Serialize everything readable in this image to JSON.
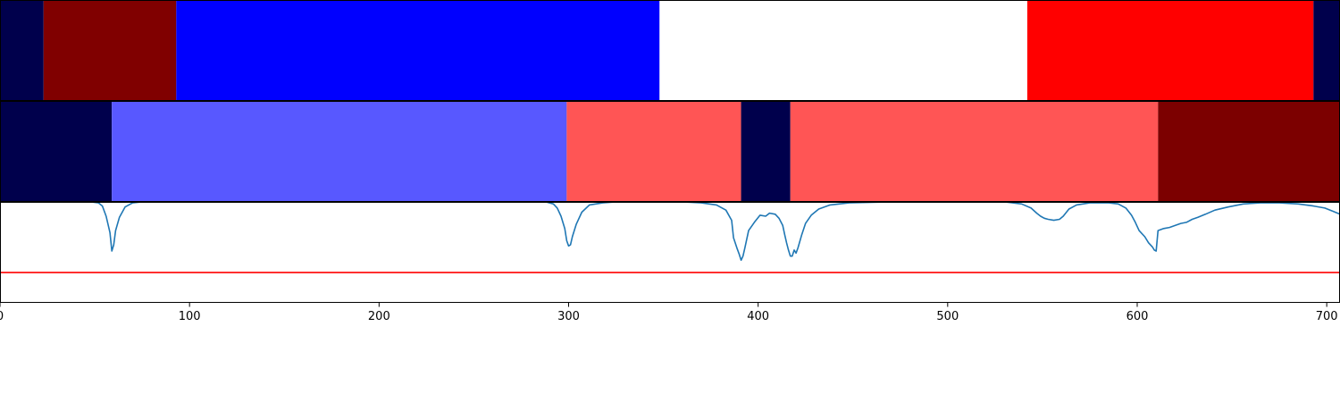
{
  "chart_data": [
    {
      "type": "heatmap",
      "xlim": [
        0,
        707
      ],
      "segments": [
        {
          "start": 0,
          "end": 23,
          "color": "#00004c"
        },
        {
          "start": 23,
          "end": 93,
          "color": "#800000"
        },
        {
          "start": 93,
          "end": 348,
          "color": "#0000ff"
        },
        {
          "start": 348,
          "end": 542,
          "color": "#ffffff"
        },
        {
          "start": 542,
          "end": 693,
          "color": "#ff0000"
        },
        {
          "start": 693,
          "end": 707,
          "color": "#00004c"
        }
      ]
    },
    {
      "type": "heatmap",
      "xlim": [
        0,
        707
      ],
      "segments": [
        {
          "start": 0,
          "end": 59,
          "color": "#00004c"
        },
        {
          "start": 59,
          "end": 299,
          "color": "#5858ff"
        },
        {
          "start": 299,
          "end": 391,
          "color": "#ff5555"
        },
        {
          "start": 391,
          "end": 417,
          "color": "#00004c"
        },
        {
          "start": 417,
          "end": 611,
          "color": "#ff5555"
        },
        {
          "start": 611,
          "end": 707,
          "color": "#7c0000"
        }
      ]
    },
    {
      "type": "line",
      "xlim": [
        0,
        707
      ],
      "ylim": [
        0,
        1
      ],
      "grid": false,
      "x_ticks": [
        0,
        100,
        200,
        300,
        400,
        500,
        600,
        700
      ],
      "threshold": {
        "y": 0.31,
        "color": "#ff0000"
      },
      "series": [
        {
          "color": "#1f77b4",
          "points": [
            [
              0,
              1.0
            ],
            [
              48,
              1.0
            ],
            [
              52,
              0.99
            ],
            [
              54,
              0.96
            ],
            [
              56,
              0.86
            ],
            [
              58,
              0.7
            ],
            [
              59,
              0.52
            ],
            [
              60,
              0.58
            ],
            [
              61,
              0.72
            ],
            [
              63,
              0.85
            ],
            [
              66,
              0.95
            ],
            [
              70,
              0.99
            ],
            [
              75,
              1.0
            ],
            [
              288,
              1.0
            ],
            [
              292,
              0.98
            ],
            [
              294,
              0.94
            ],
            [
              296,
              0.86
            ],
            [
              298,
              0.74
            ],
            [
              299,
              0.62
            ],
            [
              300,
              0.57
            ],
            [
              301,
              0.58
            ],
            [
              302,
              0.66
            ],
            [
              304,
              0.78
            ],
            [
              307,
              0.9
            ],
            [
              311,
              0.97
            ],
            [
              318,
              0.99
            ],
            [
              325,
              1.0
            ],
            [
              360,
              1.0
            ],
            [
              370,
              0.99
            ],
            [
              378,
              0.97
            ],
            [
              383,
              0.92
            ],
            [
              386,
              0.82
            ],
            [
              387,
              0.65
            ],
            [
              389,
              0.54
            ],
            [
              390,
              0.49
            ],
            [
              391,
              0.43
            ],
            [
              392,
              0.47
            ],
            [
              393,
              0.55
            ],
            [
              395,
              0.72
            ],
            [
              398,
              0.8
            ],
            [
              401,
              0.87
            ],
            [
              404,
              0.86
            ],
            [
              406,
              0.89
            ],
            [
              409,
              0.88
            ],
            [
              411,
              0.84
            ],
            [
              413,
              0.77
            ],
            [
              414,
              0.68
            ],
            [
              415,
              0.6
            ],
            [
              416,
              0.53
            ],
            [
              417,
              0.47
            ],
            [
              418,
              0.47
            ],
            [
              419,
              0.53
            ],
            [
              420,
              0.5
            ],
            [
              421,
              0.55
            ],
            [
              423,
              0.68
            ],
            [
              425,
              0.79
            ],
            [
              428,
              0.87
            ],
            [
              432,
              0.93
            ],
            [
              438,
              0.97
            ],
            [
              448,
              0.99
            ],
            [
              470,
              1.0
            ],
            [
              530,
              1.0
            ],
            [
              539,
              0.98
            ],
            [
              544,
              0.94
            ],
            [
              547,
              0.89
            ],
            [
              549,
              0.86
            ],
            [
              551,
              0.84
            ],
            [
              553,
              0.83
            ],
            [
              556,
              0.82
            ],
            [
              559,
              0.83
            ],
            [
              561,
              0.86
            ],
            [
              564,
              0.93
            ],
            [
              568,
              0.97
            ],
            [
              575,
              0.99
            ],
            [
              585,
              0.99
            ],
            [
              590,
              0.98
            ],
            [
              594,
              0.94
            ],
            [
              597,
              0.87
            ],
            [
              599,
              0.8
            ],
            [
              601,
              0.72
            ],
            [
              604,
              0.66
            ],
            [
              606,
              0.6
            ],
            [
              608,
              0.56
            ],
            [
              609,
              0.53
            ],
            [
              610,
              0.52
            ],
            [
              611,
              0.72
            ],
            [
              614,
              0.74
            ],
            [
              617,
              0.75
            ],
            [
              620,
              0.77
            ],
            [
              623,
              0.79
            ],
            [
              626,
              0.8
            ],
            [
              629,
              0.83
            ],
            [
              632,
              0.85
            ],
            [
              636,
              0.88
            ],
            [
              641,
              0.92
            ],
            [
              648,
              0.95
            ],
            [
              656,
              0.98
            ],
            [
              665,
              0.99
            ],
            [
              675,
              0.99
            ],
            [
              685,
              0.98
            ],
            [
              693,
              0.96
            ],
            [
              699,
              0.94
            ],
            [
              703,
              0.91
            ],
            [
              707,
              0.88
            ]
          ]
        }
      ]
    }
  ]
}
